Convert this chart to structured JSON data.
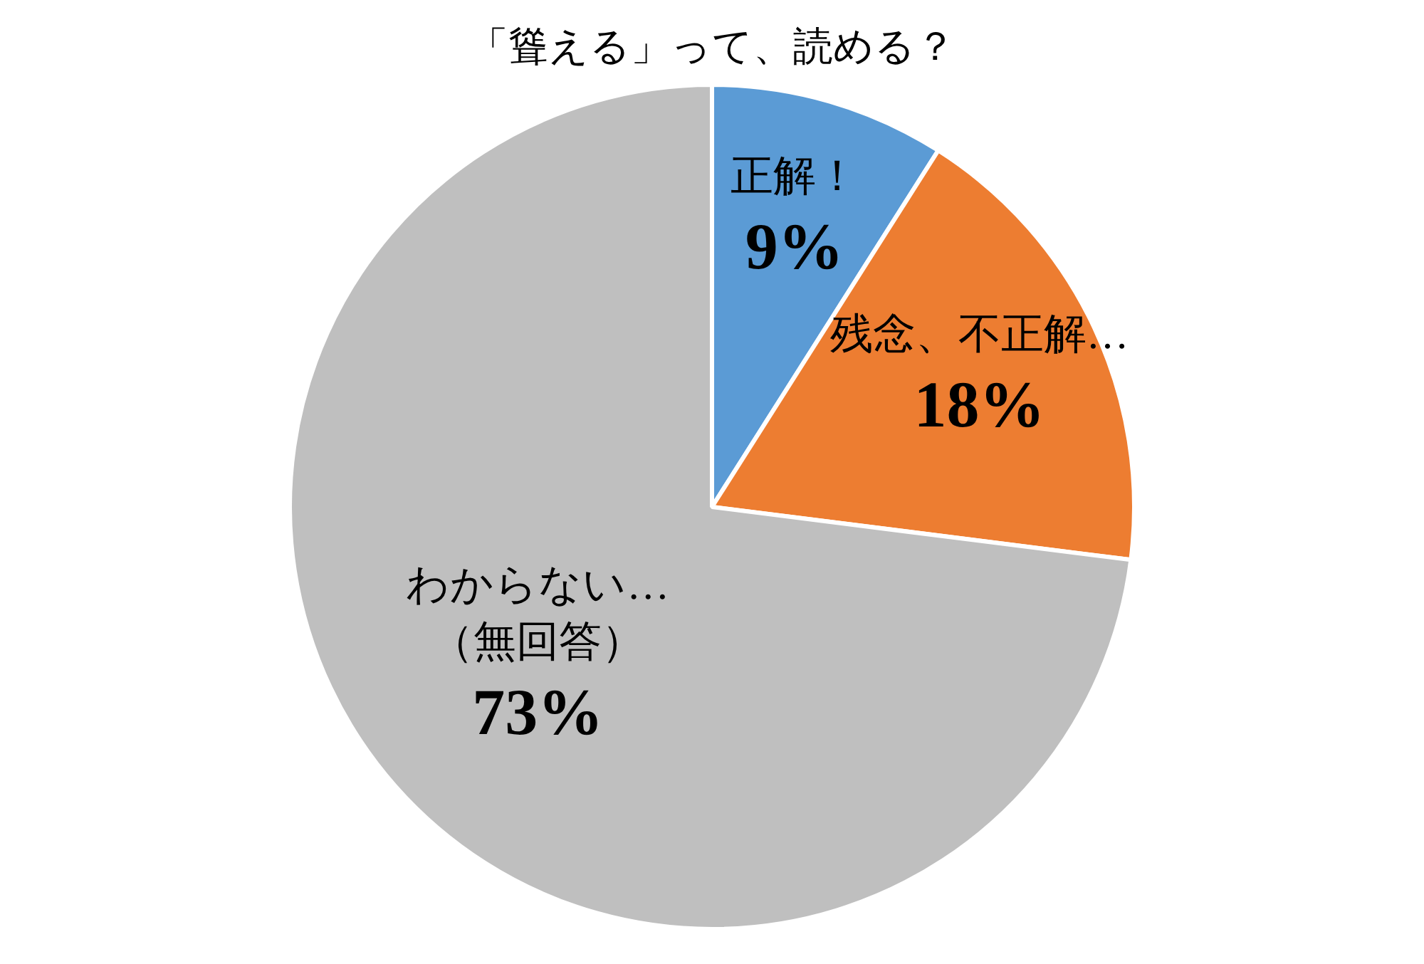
{
  "chart_data": {
    "type": "pie",
    "title": "「聳える」って、読める？",
    "categories": [
      "正解！",
      "残念、不正解…",
      "わからない…\n（無回答）"
    ],
    "values": [
      9,
      18,
      73
    ],
    "colors": [
      "#5b9bd5",
      "#ed7d31",
      "#bfbfbf"
    ],
    "value_labels": [
      "9%",
      "18%",
      "73%"
    ],
    "legend": false
  }
}
